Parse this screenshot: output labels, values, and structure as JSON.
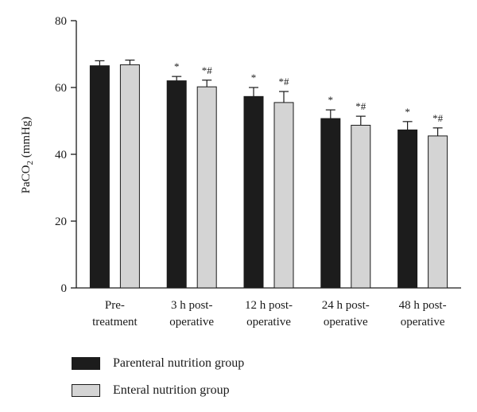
{
  "chart_data": {
    "type": "bar",
    "ylabel_main": "PaCO",
    "ylabel_sub": "2",
    "ylabel_unit": " (mmHg)",
    "ylim": [
      0,
      80
    ],
    "yticks": [
      0,
      20,
      40,
      60,
      80
    ],
    "ytick_labels": [
      "0",
      "20",
      "40",
      "60",
      "80"
    ],
    "categories": [
      [
        "Pre-",
        "treatment"
      ],
      [
        "3 h post-",
        "operative"
      ],
      [
        "12 h post-",
        "operative"
      ],
      [
        "24 h post-",
        "operative"
      ],
      [
        "48 h post-",
        "operative"
      ]
    ],
    "series": [
      {
        "name": "Parenteral nutrition group",
        "color": "#1c1c1c",
        "values": [
          66.5,
          62,
          57.3,
          50.7,
          47.3
        ],
        "errors": [
          1.5,
          1.3,
          2.7,
          2.6,
          2.5
        ],
        "annotations": [
          "",
          "*",
          "*",
          "*",
          "*"
        ]
      },
      {
        "name": "Enteral nutrition group",
        "color": "#d4d4d4",
        "values": [
          66.8,
          60.2,
          55.5,
          48.7,
          45.5
        ],
        "errors": [
          1.4,
          2.0,
          3.3,
          2.7,
          2.4
        ],
        "annotations": [
          "",
          "*#",
          "*#",
          "*#",
          "*#"
        ]
      }
    ],
    "legend_position": "bottom-left",
    "grid": false
  }
}
